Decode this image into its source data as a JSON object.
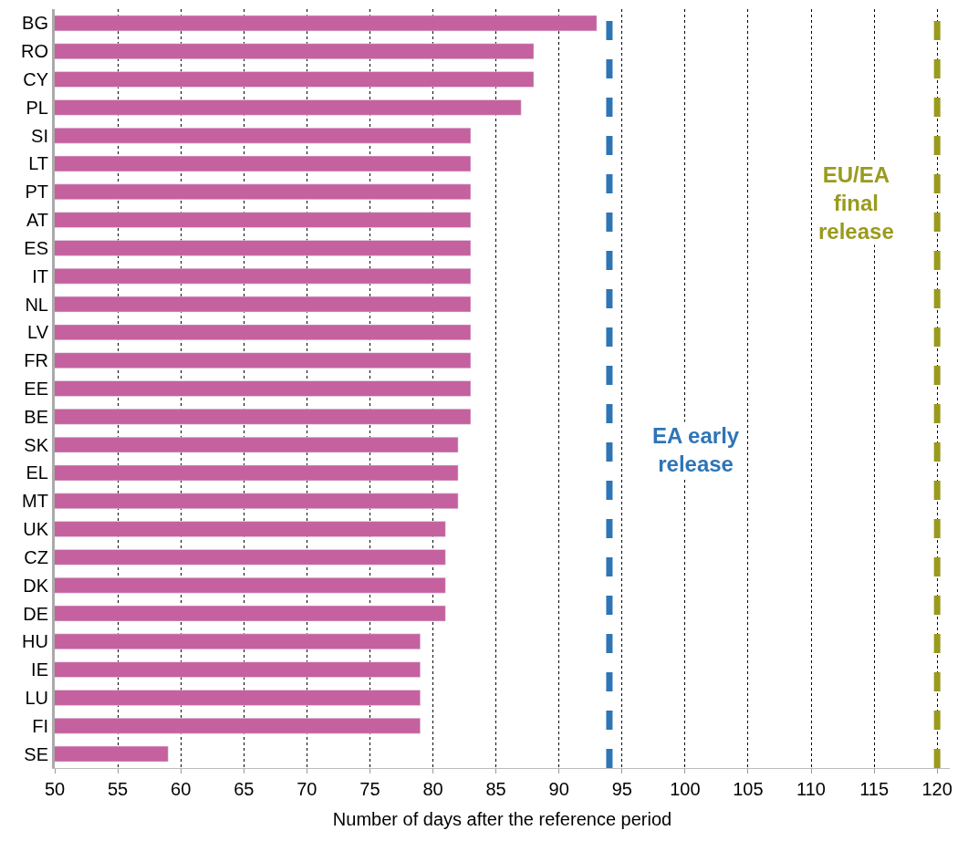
{
  "chart_data": {
    "type": "bar",
    "orientation": "horizontal",
    "xlabel": "Number of days after the reference period",
    "categories": [
      "BG",
      "RO",
      "CY",
      "PL",
      "SI",
      "LT",
      "PT",
      "AT",
      "ES",
      "IT",
      "NL",
      "LV",
      "FR",
      "EE",
      "BE",
      "SK",
      "EL",
      "MT",
      "UK",
      "CZ",
      "DK",
      "DE",
      "HU",
      "IE",
      "LU",
      "FI",
      "SE"
    ],
    "values": [
      93,
      88,
      88,
      87,
      83,
      83,
      83,
      83,
      83,
      83,
      83,
      83,
      83,
      83,
      83,
      82,
      82,
      82,
      81,
      81,
      81,
      81,
      79,
      79,
      79,
      79,
      59
    ],
    "color": "#c5619f",
    "xlim": [
      50,
      121
    ],
    "xticks": [
      50,
      55,
      60,
      65,
      70,
      75,
      80,
      85,
      90,
      95,
      100,
      105,
      110,
      115,
      120
    ],
    "grid": "x",
    "ref_lines": [
      {
        "axis": "x",
        "value": 94,
        "label": "EA early\nrelease",
        "color": "#2e75b6",
        "line_style": "dashed"
      },
      {
        "axis": "x",
        "value": 120,
        "label": "EU/EA\nfinal\nrelease",
        "color": "#9a9a1e",
        "line_style": "dashed"
      }
    ]
  }
}
